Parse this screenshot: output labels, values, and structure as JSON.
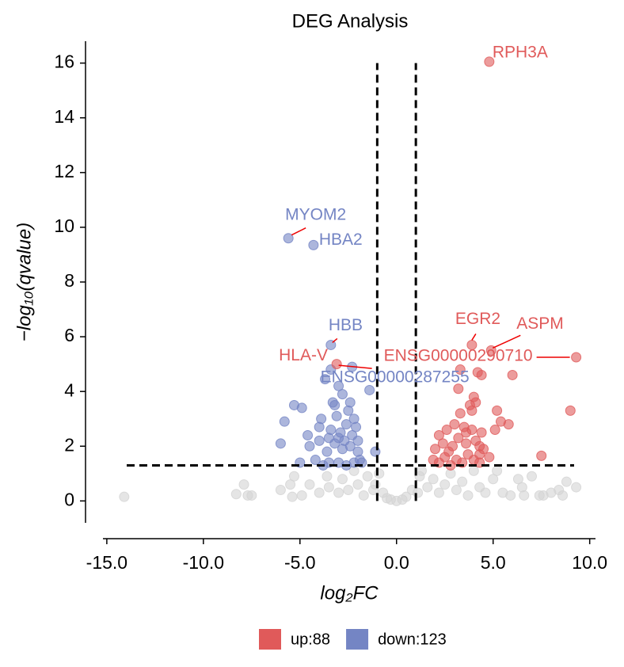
{
  "chart_data": {
    "type": "scatter",
    "title": "DEG Analysis",
    "xlabel": "log₂FC",
    "ylabel": "−log₁₀(qvalue)",
    "xlim": [
      -15.2,
      10.3
    ],
    "ylim": [
      -0.8,
      16.8
    ],
    "xticks": [
      {
        "value": -15,
        "label": "-15.0"
      },
      {
        "value": -10,
        "label": "-10.0"
      },
      {
        "value": -5,
        "label": "-5.0"
      },
      {
        "value": 0,
        "label": "0.0"
      },
      {
        "value": 5,
        "label": "5.0"
      },
      {
        "value": 10,
        "label": "10.0"
      }
    ],
    "yticks": [
      0,
      2,
      4,
      6,
      8,
      10,
      12,
      14,
      16
    ],
    "thresholds": {
      "x": [
        -1,
        1
      ],
      "y": 1.3
    },
    "series": [
      {
        "color": "#d3d3d3",
        "x": [
          -14.1,
          -8.3,
          -7.9,
          -7.7,
          -7.5,
          -6.0,
          -5.5,
          -5.4,
          -4.9,
          -5.3,
          -4.5,
          -4.0,
          -3.5,
          -3.6,
          -3.0,
          -2.8,
          -2.5,
          -2.2,
          -2.0,
          -1.7,
          -1.5,
          -1.2,
          -0.9,
          -0.7,
          -0.5,
          -0.3,
          0,
          0.3,
          0.5,
          0.8,
          1.1,
          1.3,
          1.6,
          1.9,
          2.2,
          2.5,
          2.8,
          3.1,
          3.4,
          3.7,
          4.0,
          4.3,
          4.6,
          5.0,
          5.5,
          5.9,
          6.3,
          6.5,
          6.6,
          7.0,
          7.4,
          7.6,
          8.0,
          8.4,
          8.6,
          8.8,
          9.3,
          5.2,
          1.2,
          -1.1
        ],
        "values": [
          0.15,
          0.25,
          0.6,
          0.2,
          0.2,
          0.4,
          0.6,
          0.15,
          0.2,
          0.9,
          0.6,
          0.3,
          0.5,
          0.9,
          0.3,
          0.8,
          0.4,
          1.1,
          0.6,
          0.2,
          0.9,
          0.4,
          1.0,
          0.3,
          0.1,
          0.05,
          0,
          0.05,
          0.15,
          0.4,
          0.3,
          1.1,
          0.5,
          0.8,
          0.3,
          0.6,
          1.0,
          0.4,
          0.7,
          0.2,
          1.1,
          0.5,
          0.3,
          0.8,
          0.3,
          0.2,
          0.8,
          0.5,
          0.2,
          0.9,
          0.2,
          0.2,
          0.3,
          0.4,
          0.2,
          0.7,
          0.5,
          1.1,
          0.9,
          0.6
        ]
      },
      {
        "name": "up:88",
        "color": "#e05a5a",
        "x": [
          1.9,
          2.2,
          2.5,
          2.8,
          3.1,
          3.4,
          3.7,
          4.0,
          4.3,
          2.0,
          2.4,
          2.9,
          3.2,
          3.6,
          4.1,
          4.5,
          2.6,
          3.0,
          3.5,
          3.9,
          4.4,
          5.1,
          5.4,
          2.2,
          3.3,
          3.8,
          4.0,
          3.2,
          3.3,
          4.2,
          4.4,
          6.0,
          5.2,
          5.8,
          4.3,
          4.8,
          4.3,
          3.9,
          4.1,
          7.5,
          9.0,
          3.6,
          2.7
        ],
        "values": [
          1.5,
          1.4,
          1.6,
          1.3,
          1.5,
          1.4,
          1.7,
          1.5,
          1.4,
          1.9,
          2.1,
          2.0,
          2.3,
          2.1,
          2.2,
          1.9,
          2.6,
          2.8,
          2.7,
          2.6,
          2.5,
          2.6,
          2.9,
          2.4,
          3.2,
          3.5,
          3.8,
          4.1,
          4.8,
          4.7,
          4.6,
          4.6,
          3.3,
          2.8,
          2.0,
          1.6,
          1.7,
          3.3,
          3.6,
          1.65,
          3.3,
          2.5,
          1.8
        ]
      },
      {
        "name": "down:123",
        "color": "#7485c4",
        "x": [
          -1.1,
          -1.4,
          -5.0,
          -4.2,
          -3.8,
          -3.5,
          -3.0,
          -2.6,
          -2.2,
          -1.9,
          -2.0,
          -2.4,
          -2.8,
          -3.2,
          -3.6,
          -4.0,
          -4.6,
          -6.0,
          -5.8,
          -5.3,
          -4.9,
          -4.0,
          -3.4,
          -2.9,
          -2.3,
          -2.6,
          -3.1,
          -2.5,
          -3.3,
          -2.8,
          -2.4,
          -3.7,
          -3.4,
          -3.2,
          -2.0,
          -2.1,
          -1.8,
          -4.5,
          -3.0,
          -2.7,
          -3.5,
          -2.2,
          -3.9,
          -3.0
        ],
        "values": [
          1.8,
          4.05,
          1.4,
          1.5,
          1.3,
          1.4,
          1.4,
          1.3,
          1.4,
          1.5,
          1.8,
          2.0,
          1.9,
          2.1,
          1.8,
          2.2,
          2.4,
          2.1,
          2.9,
          3.5,
          3.4,
          2.7,
          2.6,
          2.5,
          2.4,
          2.8,
          3.1,
          3.3,
          3.6,
          3.9,
          3.6,
          4.45,
          4.8,
          3.5,
          2.2,
          2.7,
          1.4,
          2.0,
          2.3,
          2.2,
          2.3,
          3.0,
          3.0,
          4.2
        ]
      }
    ],
    "annotations": [
      {
        "text": "RPH3A",
        "x": 4.8,
        "y": 16.05,
        "color": "#e05a5a"
      },
      {
        "text": "MYOM2",
        "x": -5.6,
        "y": 9.6,
        "color": "#7485c4"
      },
      {
        "text": "HBA2",
        "x": -4.3,
        "y": 9.35,
        "color": "#7485c4"
      },
      {
        "text": "HBB",
        "x": -3.4,
        "y": 5.7,
        "color": "#7485c4"
      },
      {
        "text": "HLA-V",
        "x": -3.1,
        "y": 5.0,
        "color": "#e05a5a"
      },
      {
        "text": "ENSG00000290710",
        "x": 9.3,
        "y": 5.25,
        "color": "#e05a5a"
      },
      {
        "text": "ENSG00000287255",
        "x": -2.3,
        "y": 4.9,
        "color": "#7485c4"
      },
      {
        "text": "EGR2",
        "x": 3.9,
        "y": 5.7,
        "color": "#e05a5a"
      },
      {
        "text": "ASPM",
        "x": 4.9,
        "y": 5.5,
        "color": "#e05a5a"
      }
    ]
  }
}
